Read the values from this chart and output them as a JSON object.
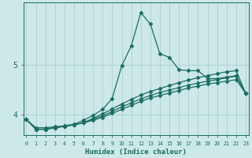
{
  "xlabel": "Humidex (Indice chaleur)",
  "background_color": "#cde8e8",
  "line_color": "#1a6e64",
  "grid_color": "#aacfcf",
  "x_ticks": [
    0,
    1,
    2,
    3,
    4,
    5,
    6,
    7,
    8,
    9,
    10,
    11,
    12,
    13,
    14,
    15,
    16,
    17,
    18,
    19,
    20,
    21,
    22,
    23
  ],
  "yticks": [
    4,
    5
  ],
  "ylim": [
    3.58,
    6.25
  ],
  "xlim": [
    -0.3,
    23.3
  ],
  "series_main": [
    3.9,
    3.73,
    3.73,
    3.75,
    3.77,
    3.8,
    3.88,
    3.98,
    4.1,
    4.32,
    4.98,
    5.38,
    6.05,
    5.82,
    5.22,
    5.15,
    4.9,
    4.88,
    4.88,
    4.72,
    4.72,
    4.75,
    4.78,
    4.42
  ],
  "series_straight": [
    [
      3.9,
      3.7,
      3.7,
      3.73,
      3.76,
      3.79,
      3.83,
      3.88,
      3.94,
      4.02,
      4.1,
      4.18,
      4.26,
      4.33,
      4.38,
      4.43,
      4.48,
      4.53,
      4.57,
      4.61,
      4.64,
      4.67,
      4.7,
      4.42
    ],
    [
      3.9,
      3.7,
      3.7,
      3.73,
      3.76,
      3.79,
      3.83,
      3.9,
      3.97,
      4.06,
      4.15,
      4.23,
      4.31,
      4.38,
      4.44,
      4.49,
      4.54,
      4.59,
      4.63,
      4.67,
      4.7,
      4.74,
      4.77,
      4.42
    ],
    [
      3.9,
      3.7,
      3.7,
      3.73,
      3.76,
      3.79,
      3.83,
      3.92,
      4.01,
      4.11,
      4.21,
      4.3,
      4.39,
      4.46,
      4.52,
      4.58,
      4.64,
      4.69,
      4.74,
      4.78,
      4.82,
      4.86,
      4.88,
      4.42
    ]
  ],
  "marker": "D",
  "markersize": 2.5,
  "linewidth": 0.9
}
